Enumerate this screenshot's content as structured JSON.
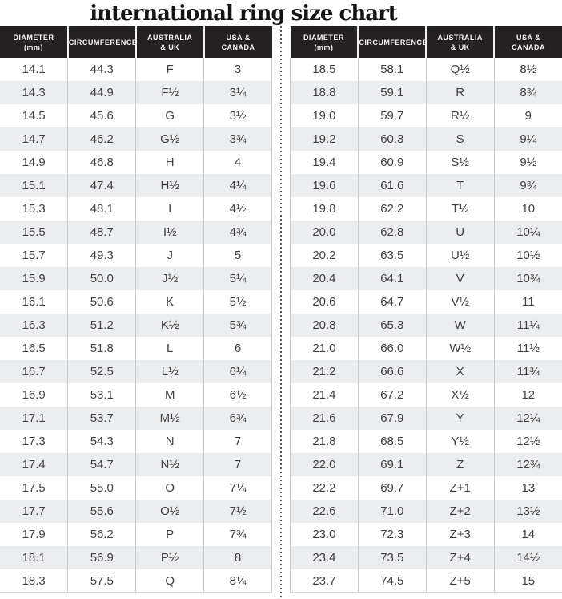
{
  "title": "international ring size chart",
  "colors": {
    "header_bg": "#242122",
    "header_text": "#f6f4f1",
    "row_alt_bg": "#ecedee",
    "cell_text": "#414042",
    "grid_line": "#c9cacb",
    "divider_dot": "#58595b",
    "title_color": "#151515"
  },
  "chart_data": {
    "type": "table",
    "title": "international ring size chart",
    "columns": [
      "DIAMETER (mm)",
      "CIRCUMFERENCE",
      "AUSTRALIA & UK",
      "USA & CANADA"
    ],
    "column_headers": [
      {
        "line1": "DIAMETER",
        "line2": "(mm)"
      },
      {
        "line1": "CIRCUMFERENCE",
        "line2": ""
      },
      {
        "line1": "AUSTRALIA",
        "line2": "& UK"
      },
      {
        "line1": "USA &",
        "line2": "CANADA"
      }
    ],
    "left_rows": [
      [
        "14.1",
        "44.3",
        "F",
        "3"
      ],
      [
        "14.3",
        "44.9",
        "F½",
        "3¼"
      ],
      [
        "14.5",
        "45.6",
        "G",
        "3½"
      ],
      [
        "14.7",
        "46.2",
        "G½",
        "3¾"
      ],
      [
        "14.9",
        "46.8",
        "H",
        "4"
      ],
      [
        "15.1",
        "47.4",
        "H½",
        "4¼"
      ],
      [
        "15.3",
        "48.1",
        "I",
        "4½"
      ],
      [
        "15.5",
        "48.7",
        "I½",
        "4¾"
      ],
      [
        "15.7",
        "49.3",
        "J",
        "5"
      ],
      [
        "15.9",
        "50.0",
        "J½",
        "5¼"
      ],
      [
        "16.1",
        "50.6",
        "K",
        "5½"
      ],
      [
        "16.3",
        "51.2",
        "K½",
        "5¾"
      ],
      [
        "16.5",
        "51.8",
        "L",
        "6"
      ],
      [
        "16.7",
        "52.5",
        "L½",
        "6¼"
      ],
      [
        "16.9",
        "53.1",
        "M",
        "6½"
      ],
      [
        "17.1",
        "53.7",
        "M½",
        "6¾"
      ],
      [
        "17.3",
        "54.3",
        "N",
        "7"
      ],
      [
        "17.4",
        "54.7",
        "N½",
        "7"
      ],
      [
        "17.5",
        "55.0",
        "O",
        "7¼"
      ],
      [
        "17.7",
        "55.6",
        "O½",
        "7½"
      ],
      [
        "17.9",
        "56.2",
        "P",
        "7¾"
      ],
      [
        "18.1",
        "56.9",
        "P½",
        "8"
      ],
      [
        "18.3",
        "57.5",
        "Q",
        "8¼"
      ]
    ],
    "right_rows": [
      [
        "18.5",
        "58.1",
        "Q½",
        "8½"
      ],
      [
        "18.8",
        "59.1",
        "R",
        "8¾"
      ],
      [
        "19.0",
        "59.7",
        "R½",
        "9"
      ],
      [
        "19.2",
        "60.3",
        "S",
        "9¼"
      ],
      [
        "19.4",
        "60.9",
        "S½",
        "9½"
      ],
      [
        "19.6",
        "61.6",
        "T",
        "9¾"
      ],
      [
        "19.8",
        "62.2",
        "T½",
        "10"
      ],
      [
        "20.0",
        "62.8",
        "U",
        "10¼"
      ],
      [
        "20.2",
        "63.5",
        "U½",
        "10½"
      ],
      [
        "20.4",
        "64.1",
        "V",
        "10¾"
      ],
      [
        "20.6",
        "64.7",
        "V½",
        "11"
      ],
      [
        "20.8",
        "65.3",
        "W",
        "11¼"
      ],
      [
        "21.0",
        "66.0",
        "W½",
        "11½"
      ],
      [
        "21.2",
        "66.6",
        "X",
        "11¾"
      ],
      [
        "21.4",
        "67.2",
        "X½",
        "12"
      ],
      [
        "21.6",
        "67.9",
        "Y",
        "12¼"
      ],
      [
        "21.8",
        "68.5",
        "Y½",
        "12½"
      ],
      [
        "22.0",
        "69.1",
        "Z",
        "12¾"
      ],
      [
        "22.2",
        "69.7",
        "Z+1",
        "13"
      ],
      [
        "22.6",
        "71.0",
        "Z+2",
        "13½"
      ],
      [
        "23.0",
        "72.3",
        "Z+3",
        "14"
      ],
      [
        "23.4",
        "73.5",
        "Z+4",
        "14½"
      ],
      [
        "23.7",
        "74.5",
        "Z+5",
        "15"
      ]
    ]
  }
}
